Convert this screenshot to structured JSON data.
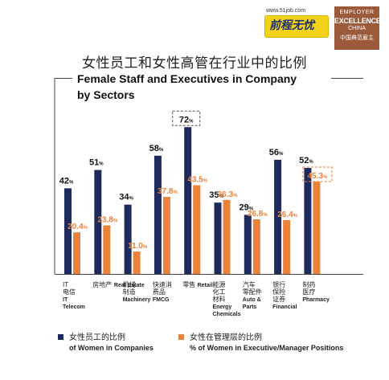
{
  "brand": {
    "url": "www.51job.com",
    "logo_text": "前程无忧",
    "badge_line1": "EMPLOYER",
    "badge_line2": "EXCELLENCE",
    "badge_line3": "CHINA",
    "badge_line4": "中国典范雇主"
  },
  "colors": {
    "navy": "#1f2a5c",
    "orange": "#e9823a"
  },
  "chart_data": {
    "type": "bar",
    "title": "女性员工和女性高管在行业中的比例",
    "subtitle_line1": "Female Staff and Executives in Company",
    "subtitle_line2": "by Sectors",
    "ylim": [
      0,
      80
    ],
    "categories": [
      {
        "cn": [
          "电信"
        ],
        "en": [
          "IT",
          "Telecom"
        ],
        "prefix": "IT"
      },
      {
        "cn": [
          "房地产"
        ],
        "en": [
          "Real Estate"
        ]
      },
      {
        "cn": [
          "机械",
          "制造"
        ],
        "en": [
          "Machinery"
        ]
      },
      {
        "cn": [
          "快速消",
          "费品"
        ],
        "en": [
          "FMCG"
        ]
      },
      {
        "cn": [
          "零售"
        ],
        "en": [
          "Retail"
        ]
      },
      {
        "cn": [
          "能源",
          "化工",
          "材料"
        ],
        "en": [
          "Energy",
          "Chemicals"
        ]
      },
      {
        "cn": [
          "汽车",
          "零配件"
        ],
        "en": [
          "Auto &",
          "Parts"
        ]
      },
      {
        "cn": [
          "银行",
          "保险",
          "证券"
        ],
        "en": [
          "Financial"
        ]
      },
      {
        "cn": [
          "制药",
          "医疗"
        ],
        "en": [
          "Pharmacy"
        ]
      }
    ],
    "series": [
      {
        "name_cn": "女性员工的比例",
        "name_en": "of Women in Companies",
        "values": [
          42,
          51,
          34,
          58,
          72,
          35,
          29,
          56,
          52
        ],
        "labels": [
          "42",
          "51",
          "34",
          "58",
          "72",
          "35",
          "29",
          "56",
          "52"
        ]
      },
      {
        "name_cn": "女性在管理层的比例",
        "name_en": "% of Women in Executive/Manager Positions",
        "values": [
          20.4,
          23.8,
          11.0,
          37.8,
          43.5,
          36.3,
          26.8,
          26.4,
          45.3
        ],
        "labels": [
          "20.4",
          "23.8",
          "11.0",
          "37.8",
          "43.5",
          "36.3",
          "26.8",
          "26.4",
          "45.3"
        ]
      }
    ],
    "unit": "%",
    "highlighted": {
      "series0_index": 4,
      "series1_index": 8
    },
    "grid": false,
    "legend": "bottom"
  }
}
